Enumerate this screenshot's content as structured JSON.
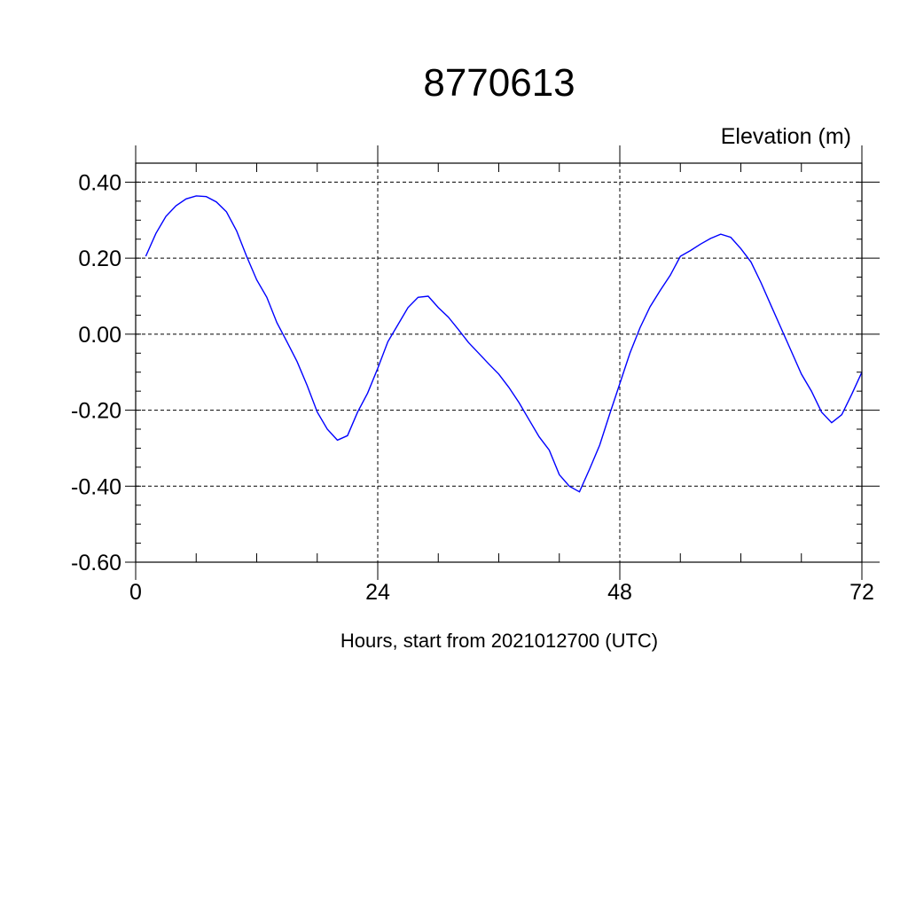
{
  "chart_data": {
    "type": "line",
    "title": "8770613",
    "ylabel": "Elevation (m)",
    "xlabel": "Hours, start from 2021012700 (UTC)",
    "xlim": [
      0,
      72
    ],
    "ylim": [
      -0.6,
      0.45
    ],
    "x_ticks": [
      0,
      24,
      48,
      72
    ],
    "x_tick_labels": [
      "0",
      "24",
      "48",
      "72"
    ],
    "y_ticks": [
      0.4,
      0.2,
      0.0,
      -0.2,
      -0.4,
      -0.6
    ],
    "y_tick_labels": [
      "0.40",
      "0.20",
      "0.00",
      "-0.20",
      "-0.40",
      "-0.60"
    ],
    "grid": true,
    "line_color": "#0000ff",
    "series": [
      {
        "x": [
          1,
          2,
          3,
          4,
          5,
          6,
          7,
          8,
          9,
          10,
          11,
          12,
          13,
          14,
          15,
          16,
          17,
          18,
          19,
          20,
          21,
          22,
          23,
          24,
          25,
          26,
          27,
          28,
          29,
          30,
          31,
          32,
          33,
          34,
          35,
          36,
          37,
          38,
          39,
          40,
          41,
          42,
          43,
          44,
          45,
          46,
          47,
          48,
          49,
          50,
          51,
          52,
          53,
          54,
          55,
          56,
          57,
          58,
          59,
          60,
          61,
          62,
          63,
          64,
          65,
          66,
          67,
          68,
          69,
          70,
          71,
          72
        ],
        "y": [
          0.205,
          0.265,
          0.31,
          0.338,
          0.356,
          0.364,
          0.362,
          0.348,
          0.322,
          0.272,
          0.205,
          0.143,
          0.097,
          0.03,
          -0.02,
          -0.072,
          -0.135,
          -0.205,
          -0.25,
          -0.279,
          -0.267,
          -0.205,
          -0.155,
          -0.09,
          -0.02,
          0.025,
          0.07,
          0.097,
          0.1,
          0.07,
          0.045,
          0.012,
          -0.022,
          -0.05,
          -0.078,
          -0.105,
          -0.14,
          -0.18,
          -0.225,
          -0.27,
          -0.305,
          -0.37,
          -0.4,
          -0.415,
          -0.355,
          -0.292,
          -0.21,
          -0.13,
          -0.05,
          0.017,
          0.072,
          0.115,
          0.155,
          0.205,
          0.22,
          0.237,
          0.252,
          0.263,
          0.255,
          0.225,
          0.19,
          0.135,
          0.075,
          0.015,
          -0.045,
          -0.105,
          -0.15,
          -0.205,
          -0.233,
          -0.212,
          -0.158,
          -0.1
        ]
      }
    ]
  }
}
